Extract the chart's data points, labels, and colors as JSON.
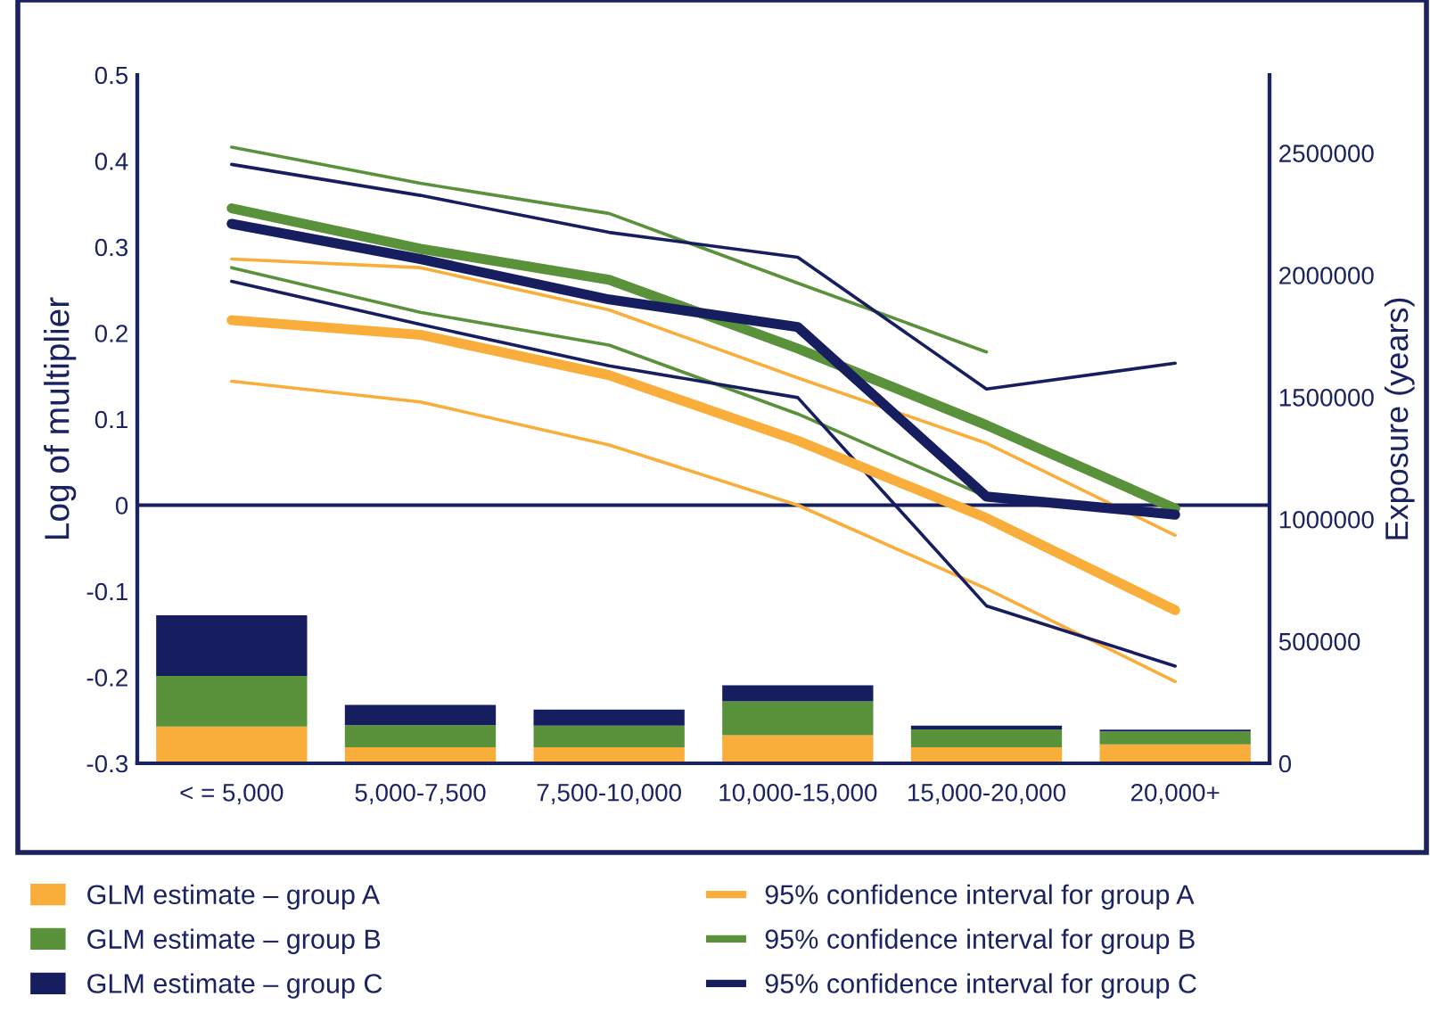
{
  "chart_data": {
    "type": "line",
    "ylabel": "Log of multiplier",
    "y2label": "Exposure (years)",
    "categories": [
      "< = 5,000",
      "5,000-7,500",
      "7,500-10,000",
      "10,000-15,000",
      "15,000-20,000",
      "20,000+"
    ],
    "stacked": true,
    "legend": "bottom",
    "grid": false,
    "ylim": [
      -0.3,
      0.5
    ],
    "yticks": [
      -0.3,
      -0.2,
      -0.1,
      0,
      0.1,
      0.2,
      0.3,
      0.4,
      0.5
    ],
    "y2lim": [
      0,
      2820000
    ],
    "y2ticks": [
      0,
      500000,
      1000000,
      1500000,
      2000000,
      2500000
    ],
    "ref_lines": [
      {
        "axis": "y",
        "value": 0,
        "color": "#171e5f"
      }
    ],
    "series": [
      {
        "type": "bar",
        "axis": "y2",
        "color": "#f9ae3b",
        "values": [
          151000,
          66000,
          66000,
          115000,
          66000,
          78000
        ]
      },
      {
        "type": "bar",
        "axis": "y2",
        "color": "#5a913b",
        "values": [
          207000,
          90000,
          88000,
          139000,
          73000,
          53000
        ]
      },
      {
        "type": "bar",
        "axis": "y2",
        "color": "#171e5f",
        "values": [
          248000,
          83000,
          66000,
          66000,
          15000,
          7000
        ]
      },
      {
        "name": "95% confidence interval for group A",
        "color": "#f9ae3b",
        "values": [
          0.286,
          0.276,
          0.227,
          0.148,
          0.072,
          -0.035
        ]
      },
      {
        "color": "#f9ae3b",
        "values": [
          0.144,
          0.12,
          0.07,
          0.0,
          -0.097,
          -0.205
        ]
      },
      {
        "name": "95% confidence interval for group B",
        "color": "#5a913b",
        "values": [
          0.416,
          0.374,
          0.339,
          0.258,
          0.178,
          null
        ]
      },
      {
        "color": "#5a913b",
        "values": [
          0.276,
          0.224,
          0.186,
          0.106,
          0.01,
          null
        ]
      },
      {
        "name": "95% confidence interval for group C",
        "color": "#171e5f",
        "values": [
          0.396,
          0.36,
          0.317,
          0.288,
          0.135,
          0.165
        ]
      },
      {
        "color": "#171e5f",
        "values": [
          0.26,
          0.21,
          0.162,
          0.125,
          -0.117,
          -0.187
        ]
      },
      {
        "name": "GLM estimate – group A",
        "color": "#f9ae3b",
        "values": [
          0.215,
          0.198,
          0.151,
          0.075,
          -0.015,
          -0.122
        ]
      },
      {
        "name": "GLM estimate – group B",
        "color": "#5a913b",
        "values": [
          0.345,
          0.298,
          0.262,
          0.182,
          0.093,
          -0.004
        ]
      },
      {
        "name": "GLM estimate – group C",
        "color": "#171e5f",
        "values": [
          0.327,
          0.286,
          0.239,
          0.207,
          0.01,
          -0.011
        ]
      }
    ]
  }
}
